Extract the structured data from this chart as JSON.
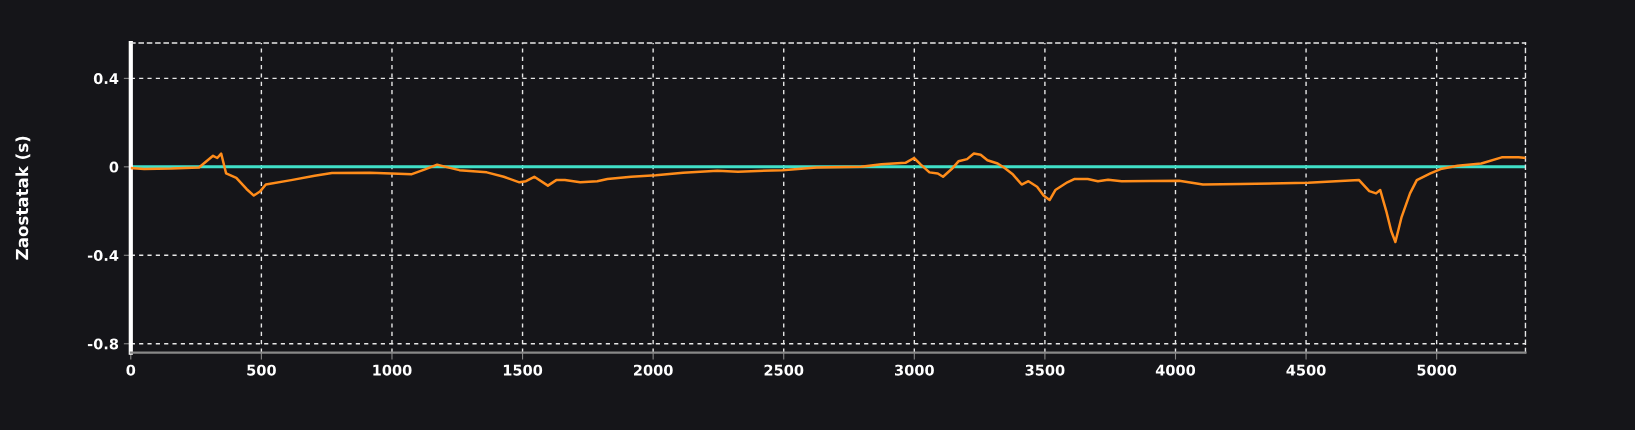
{
  "chart_data": {
    "type": "line",
    "ylabel": "Zaostatak (s)",
    "xlim": [
      0,
      5340
    ],
    "ylim": [
      -0.84,
      0.56
    ],
    "xticks": [
      0,
      500,
      1000,
      1500,
      2000,
      2500,
      3000,
      3500,
      4000,
      4500,
      5000
    ],
    "yticks": [
      {
        "value": -0.8,
        "label": "-0.8"
      },
      {
        "value": -0.4,
        "label": "-0.4"
      },
      0,
      0.4
    ],
    "grid": true,
    "marker": "none",
    "line_style": "solid",
    "ref_lines": [
      {
        "axis": "y",
        "value": 0,
        "label": null,
        "color": "#40e0c8"
      }
    ],
    "series": [
      {
        "color": "#ff8c1a",
        "x": [
          0,
          51,
          156,
          261,
          315,
          331,
          346,
          365,
          404,
          443,
          471,
          496,
          517,
          614,
          704,
          770,
          915,
          997,
          1076,
          1129,
          1173,
          1206,
          1258,
          1363,
          1428,
          1488,
          1513,
          1545,
          1597,
          1629,
          1662,
          1721,
          1786,
          1825,
          1916,
          2010,
          2115,
          2246,
          2325,
          2495,
          2626,
          2796,
          2874,
          2966,
          2999,
          3025,
          3058,
          3090,
          3110,
          3143,
          3169,
          3202,
          3228,
          3254,
          3280,
          3319,
          3346,
          3378,
          3411,
          3437,
          3470,
          3495,
          3518,
          3540,
          3586,
          3612,
          3664,
          3703,
          3742,
          3794,
          4014,
          4105,
          4248,
          4508,
          4703,
          4742,
          4768,
          4784,
          4807,
          4826,
          4842,
          4865,
          4898,
          4924,
          4976,
          5015,
          5080,
          5171,
          5249,
          5314,
          5340
        ],
        "values": [
          -0.005,
          -0.01,
          -0.008,
          -0.003,
          0.05,
          0.04,
          0.06,
          -0.03,
          -0.05,
          -0.1,
          -0.13,
          -0.11,
          -0.08,
          -0.06,
          -0.04,
          -0.028,
          -0.027,
          -0.03,
          -0.033,
          -0.01,
          0.01,
          0.0,
          -0.015,
          -0.025,
          -0.045,
          -0.07,
          -0.065,
          -0.045,
          -0.085,
          -0.06,
          -0.06,
          -0.07,
          -0.065,
          -0.055,
          -0.045,
          -0.038,
          -0.027,
          -0.018,
          -0.022,
          -0.015,
          -0.003,
          0.0,
          0.012,
          0.018,
          0.04,
          0.01,
          -0.025,
          -0.03,
          -0.045,
          -0.01,
          0.025,
          0.035,
          0.06,
          0.055,
          0.03,
          0.015,
          -0.005,
          -0.035,
          -0.08,
          -0.065,
          -0.09,
          -0.13,
          -0.15,
          -0.105,
          -0.07,
          -0.055,
          -0.055,
          -0.065,
          -0.058,
          -0.065,
          -0.063,
          -0.08,
          -0.078,
          -0.072,
          -0.06,
          -0.11,
          -0.12,
          -0.105,
          -0.2,
          -0.29,
          -0.34,
          -0.23,
          -0.12,
          -0.06,
          -0.03,
          -0.01,
          0.005,
          0.015,
          0.043,
          0.043,
          0.04
        ]
      }
    ]
  }
}
